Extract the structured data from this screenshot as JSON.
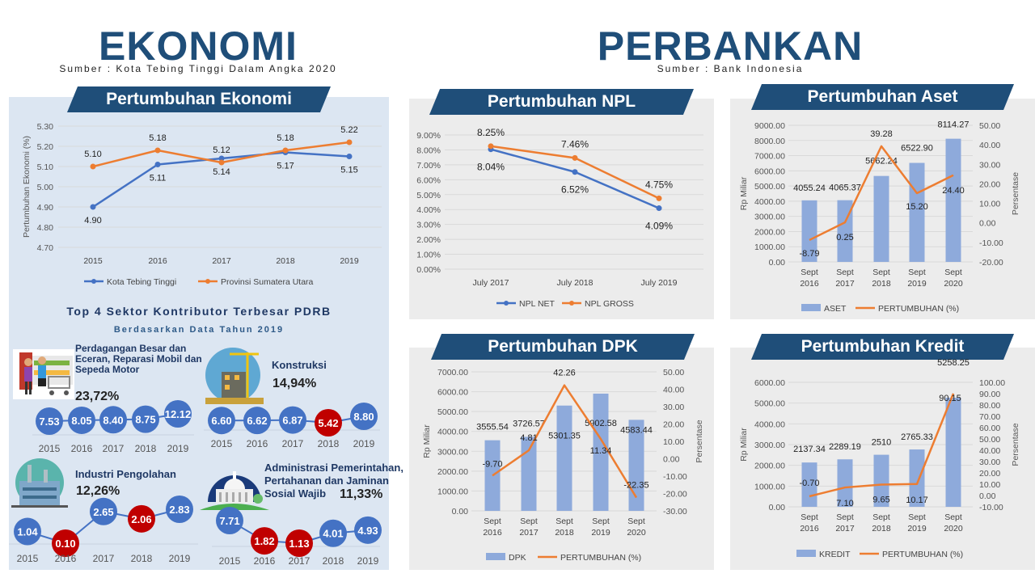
{
  "ekonomi": {
    "title": "EKONOMI",
    "source": "Sumber : Kota Tebing Tinggi Dalam Angka 2020"
  },
  "perbankan": {
    "title": "PERBANKAN",
    "source": "Sumber : Bank Indonesia"
  },
  "top4": {
    "title": "Top 4 Sektor Kontributor Terbesar PDRB",
    "subtitle": "Berdasarkan Data Tahun 2019",
    "sectors": [
      {
        "name": "Perdagangan Besar dan Eceran, Reparasi Mobil dan Sepeda Motor",
        "share": "23,72%",
        "icon": "shopping-icon"
      },
      {
        "name": "Konstruksi",
        "share": "14,94%",
        "icon": "construction-icon"
      },
      {
        "name": "Industri Pengolahan",
        "share": "12,26%",
        "icon": "factory-icon"
      },
      {
        "name": "Administrasi Pemerintahan, Pertahanan dan Jaminan Sosial Wajib",
        "share": "11,33%",
        "icon": "government-building-icon"
      }
    ]
  },
  "colors": {
    "navy": "#1f4e79",
    "blue": "#4472c4",
    "orange": "#ed7d31",
    "bar": "#8eaadb",
    "red": "#c00000"
  },
  "chart_data": [
    {
      "type": "line",
      "title": "Pertumbuhan Ekonomi",
      "ylabel": "Pertumbuhan Ekonomi (%)",
      "ylim": [
        4.7,
        5.3
      ],
      "yticks": [
        "4.70",
        "4.80",
        "4.90",
        "5.00",
        "5.10",
        "5.20",
        "5.30"
      ],
      "categories": [
        "2015",
        "2016",
        "2017",
        "2018",
        "2019"
      ],
      "legend": "bottom",
      "grid": true,
      "series": [
        {
          "name": "Kota Tebing Tinggi",
          "values": [
            4.9,
            5.11,
            5.14,
            5.17,
            5.15
          ],
          "labels": [
            "4.90",
            "5.11",
            "5.14",
            "5.17",
            "5.15"
          ]
        },
        {
          "name": "Provinsi Sumatera Utara",
          "values": [
            5.1,
            5.18,
            5.12,
            5.18,
            5.22
          ],
          "labels": [
            "5.10",
            "5.18",
            "5.12",
            "5.18",
            "5.22"
          ]
        }
      ]
    },
    {
      "type": "line",
      "title": "Pertumbuhan NPL",
      "ylim": [
        0,
        9
      ],
      "yticks": [
        "0.00%",
        "1.00%",
        "2.00%",
        "3.00%",
        "4.00%",
        "5.00%",
        "6.00%",
        "7.00%",
        "8.00%",
        "9.00%"
      ],
      "categories": [
        "July 2017",
        "July 2018",
        "July 2019"
      ],
      "legend": "bottom",
      "grid": true,
      "series": [
        {
          "name": "NPL NET",
          "values": [
            8.04,
            6.52,
            4.09
          ],
          "labels": [
            "8.04%",
            "6.52%",
            "4.09%"
          ]
        },
        {
          "name": "NPL GROSS",
          "values": [
            8.25,
            7.46,
            4.75
          ],
          "labels": [
            "8.25%",
            "7.46%",
            "4.75%"
          ]
        }
      ]
    },
    {
      "type": "bar+line",
      "title": "Pertumbuhan Aset",
      "ylabel": "Rp Miliar",
      "y2label": "Persentase",
      "ylim": [
        0,
        9000
      ],
      "y2lim": [
        -20,
        50
      ],
      "yticks": [
        "0.00",
        "1000.00",
        "2000.00",
        "3000.00",
        "4000.00",
        "5000.00",
        "6000.00",
        "7000.00",
        "8000.00",
        "9000.00"
      ],
      "y2ticks": [
        "-20.00",
        "-10.00",
        "0.00",
        "10.00",
        "20.00",
        "30.00",
        "40.00",
        "50.00"
      ],
      "categories": [
        [
          "Sept",
          "2016"
        ],
        [
          "Sept",
          "2017"
        ],
        [
          "Sept",
          "2018"
        ],
        [
          "Sept",
          "2019"
        ],
        [
          "Sept",
          "2020"
        ]
      ],
      "legend": "bottom",
      "bar": {
        "name": "ASET",
        "values": [
          4055.24,
          4065.37,
          5662.24,
          6522.9,
          8114.27
        ],
        "labels": [
          "4055.24",
          "4065.37",
          "5662.24",
          "6522.90",
          "8114.27"
        ]
      },
      "line": {
        "name": "PERTUMBUHAN (%)",
        "values": [
          -8.79,
          0.25,
          39.28,
          15.2,
          24.4
        ],
        "labels": [
          "-8.79",
          "0.25",
          "39.28",
          "15.20",
          "24.40"
        ]
      }
    },
    {
      "type": "bar+line",
      "title": "Pertumbuhan DPK",
      "ylabel": "Rp Miliar",
      "y2label": "Persentase",
      "ylim": [
        0,
        7000
      ],
      "y2lim": [
        -30,
        50
      ],
      "yticks": [
        "0.00",
        "1000.00",
        "2000.00",
        "3000.00",
        "4000.00",
        "5000.00",
        "6000.00",
        "7000.00"
      ],
      "y2ticks": [
        "-30.00",
        "-20.00",
        "-10.00",
        "0.00",
        "10.00",
        "20.00",
        "30.00",
        "40.00",
        "50.00"
      ],
      "categories": [
        [
          "Sept",
          "2016"
        ],
        [
          "Sept",
          "2017"
        ],
        [
          "Sept",
          "2018"
        ],
        [
          "Sept",
          "2019"
        ],
        [
          "Sept",
          "2020"
        ]
      ],
      "legend": "bottom",
      "bar": {
        "name": "DPK",
        "values": [
          3555.54,
          3726.57,
          5301.35,
          5902.58,
          4583.44
        ],
        "labels": [
          "3555.54",
          "3726.57",
          "5301.35",
          "5902.58",
          "4583.44"
        ]
      },
      "line": {
        "name": "PERTUMBUHAN (%)",
        "values": [
          -9.7,
          4.81,
          42.26,
          11.34,
          -22.35
        ],
        "labels": [
          "-9.70",
          "4.81",
          "42.26",
          "11.34",
          "-22.35"
        ]
      }
    },
    {
      "type": "bar+line",
      "title": "Pertumbuhan Kredit",
      "ylabel": "Rp Miliar",
      "y2label": "Persentase",
      "ylim": [
        0,
        6000
      ],
      "y2lim": [
        -10,
        100
      ],
      "yticks": [
        "0.00",
        "1000.00",
        "2000.00",
        "3000.00",
        "4000.00",
        "5000.00",
        "6000.00"
      ],
      "y2ticks": [
        "-10.00",
        "0.00",
        "10.00",
        "20.00",
        "30.00",
        "40.00",
        "50.00",
        "60.00",
        "70.00",
        "80.00",
        "90.00",
        "100.00"
      ],
      "categories": [
        [
          "Sept",
          "2016"
        ],
        [
          "Sept",
          "2017"
        ],
        [
          "Sept",
          "2018"
        ],
        [
          "Sept",
          "2019"
        ],
        [
          "Sept",
          "2020"
        ]
      ],
      "legend": "bottom",
      "bar": {
        "name": "KREDIT",
        "values": [
          2137.34,
          2289.19,
          2510,
          2765.33,
          5258.25
        ],
        "labels": [
          "2137.34",
          "2289.19",
          "2510",
          "2765.33",
          "5258.25"
        ]
      },
      "line": {
        "name": "PERTUMBUHAN (%)",
        "values": [
          -0.7,
          7.1,
          9.65,
          10.17,
          90.15
        ],
        "labels": [
          "-0.70",
          "7.10",
          "9.65",
          "10.17",
          "90.15"
        ]
      }
    },
    {
      "type": "line",
      "title": "Perdagangan Besar dan Eceran, Reparasi Mobil dan Sepeda Motor",
      "categories": [
        "2015",
        "2016",
        "2017",
        "2018",
        "2019"
      ],
      "values": [
        7.53,
        8.05,
        8.4,
        8.75,
        12.12
      ],
      "labels": [
        "7.53",
        "8.05",
        "8.40",
        "8.75",
        "12.12"
      ],
      "decline": [
        false,
        false,
        false,
        false,
        false
      ]
    },
    {
      "type": "line",
      "title": "Konstruksi",
      "categories": [
        "2015",
        "2016",
        "2017",
        "2018",
        "2019"
      ],
      "values": [
        6.6,
        6.62,
        6.87,
        5.42,
        8.8
      ],
      "labels": [
        "6.60",
        "6.62",
        "6.87",
        "5.42",
        "8.80"
      ],
      "decline": [
        false,
        false,
        false,
        true,
        false
      ]
    },
    {
      "type": "line",
      "title": "Industri Pengolahan",
      "categories": [
        "2015",
        "2016",
        "2017",
        "2018",
        "2019"
      ],
      "values": [
        1.04,
        0.1,
        2.65,
        2.06,
        2.83
      ],
      "labels": [
        "1.04",
        "0.10",
        "2.65",
        "2.06",
        "2.83"
      ],
      "decline": [
        false,
        true,
        false,
        true,
        false
      ]
    },
    {
      "type": "line",
      "title": "Administrasi Pemerintahan, Pertahanan dan Jaminan Sosial Wajib",
      "categories": [
        "2015",
        "2016",
        "2017",
        "2018",
        "2019"
      ],
      "values": [
        7.71,
        1.82,
        1.13,
        4.01,
        4.93
      ],
      "labels": [
        "7.71",
        "1.82",
        "1.13",
        "4.01",
        "4.93"
      ],
      "decline": [
        false,
        true,
        true,
        false,
        false
      ]
    }
  ]
}
